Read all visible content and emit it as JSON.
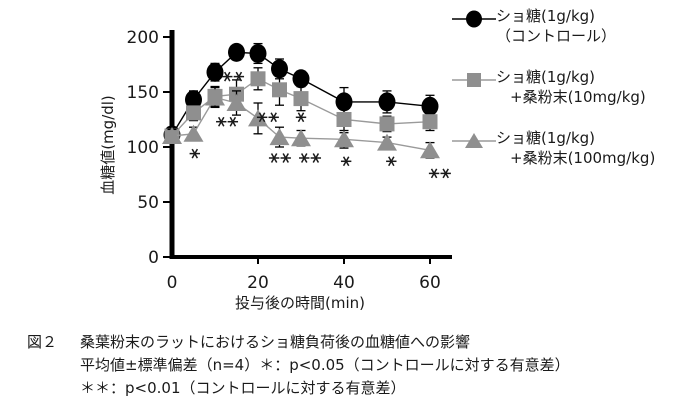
{
  "chart_data": {
    "type": "line",
    "title": "",
    "xlabel": "投与後の時間(min)",
    "ylabel": "血糖値(mg/dl)",
    "xlim": [
      0,
      65
    ],
    "ylim": [
      0,
      210
    ],
    "xticks": [
      0,
      20,
      40,
      60
    ],
    "yticks": [
      0,
      50,
      100,
      150,
      200
    ],
    "grid": false,
    "legend_position": "right",
    "x": [
      0,
      5,
      10,
      15,
      20,
      25,
      30,
      40,
      50,
      60
    ],
    "series": [
      {
        "name": "ショ糖(1g/kg)（コントロール）",
        "marker": "circle",
        "color": "#000000",
        "line_color": "#000000",
        "values": [
          111,
          143,
          168,
          186,
          185,
          171,
          162,
          141,
          141,
          137
        ],
        "sd": [
          7,
          8,
          8,
          6,
          9,
          9,
          7,
          13,
          10,
          10
        ]
      },
      {
        "name": "ショ糖(1g/kg)+桑粉末(10mg/kg)",
        "marker": "square",
        "color": "#8f8f8f",
        "line_color": "#9a9a9a",
        "values": [
          110,
          131,
          146,
          148,
          162,
          152,
          144,
          125,
          121,
          123
        ],
        "sd": [
          6,
          7,
          9,
          13,
          10,
          14,
          11,
          12,
          7,
          8
        ]
      },
      {
        "name": "ショ糖(1g/kg)+桑粉末(100mg/kg)",
        "marker": "triangle",
        "color": "#8f8f8f",
        "line_color": "#9a9a9a",
        "values": [
          110,
          112,
          145,
          140,
          126,
          109,
          108,
          107,
          104,
          97
        ],
        "sd": [
          6,
          6,
          9,
          11,
          14,
          9,
          7,
          8,
          5,
          7
        ]
      }
    ],
    "annotations": [
      {
        "x": 5.3,
        "y": 94,
        "stars": 1,
        "label": "＊"
      },
      {
        "x": 14.2,
        "y": 164,
        "stars": 2,
        "label": "＊＊"
      },
      {
        "x": 12.8,
        "y": 123,
        "stars": 2,
        "label": "＊＊"
      },
      {
        "x": 22.3,
        "y": 127,
        "stars": 2,
        "label": "＊＊"
      },
      {
        "x": 30.0,
        "y": 127,
        "stars": 1,
        "label": "＊"
      },
      {
        "x": 25.1,
        "y": 90,
        "stars": 2,
        "label": "＊＊"
      },
      {
        "x": 32.1,
        "y": 90,
        "stars": 2,
        "label": "＊＊"
      },
      {
        "x": 40.5,
        "y": 87,
        "stars": 1,
        "label": "＊"
      },
      {
        "x": 51.0,
        "y": 87,
        "stars": 1,
        "label": "＊"
      },
      {
        "x": 62.3,
        "y": 76,
        "stars": 2,
        "label": "＊＊"
      }
    ]
  },
  "legend": {
    "items": [
      {
        "line1": "ショ糖(1g/kg)",
        "line2": "（コントロール）"
      },
      {
        "line1": "ショ糖(1g/kg)",
        "line2": "+桑粉末(10mg/kg)"
      },
      {
        "line1": "ショ糖(1g/kg)",
        "line2": "+桑粉末(100mg/kg)"
      }
    ]
  },
  "caption": {
    "fig_label": "図２",
    "line1": "桑葉粉末のラットにおけるショ糖負荷後の血糖値への影響",
    "line2": "平均値±標準偏差（n=4）＊：p<0.05（コントロールに対する有意差）",
    "line3": "＊＊：p<0.01（コントロールに対する有意差）"
  }
}
